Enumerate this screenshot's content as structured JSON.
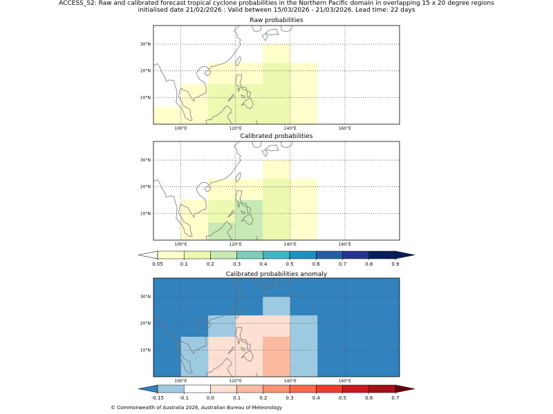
{
  "figure": {
    "title_line1": "ACCESS_S2: Raw and calibrated forecast tropical cyclone probabilities in the Northern Pacific domain in overlapping 15 x 20 degree regions",
    "title_line2": "initialised date 21/02/2026 :  Valid between 15/03/2026 - 21/03/2026. Lead time: 22 days",
    "credit": "© Commonwealth of Australia 2026, Australian Bureau of Meteorology"
  },
  "chart_data": [
    {
      "type": "heatmap",
      "title": "Raw probabilities",
      "lon_range": [
        90,
        180
      ],
      "lat_range": [
        0,
        37
      ],
      "lon_ticks": [
        100,
        120,
        140,
        160
      ],
      "lat_ticks": [
        10,
        20,
        30
      ],
      "lon_tick_labels": [
        "100°E",
        "120°E",
        "140°E",
        "160°E"
      ],
      "lat_tick_labels": [
        "10°N",
        "20°N",
        "30°N"
      ],
      "cells": [
        {
          "lon": [
            90,
            110
          ],
          "lat": [
            0,
            6.5
          ],
          "value": 0.07
        },
        {
          "lon": [
            100,
            120
          ],
          "lat": [
            6.5,
            15
          ],
          "value": 0.07
        },
        {
          "lon": [
            110,
            130
          ],
          "lat": [
            15,
            23
          ],
          "value": 0.07
        },
        {
          "lon": [
            110,
            120
          ],
          "lat": [
            0,
            6.5
          ],
          "value": 0.15
        },
        {
          "lon": [
            110,
            120
          ],
          "lat": [
            6.5,
            15
          ],
          "value": 0.15
        },
        {
          "lon": [
            120,
            130
          ],
          "lat": [
            0,
            15
          ],
          "value": 0.15
        },
        {
          "lon": [
            130,
            140
          ],
          "lat": [
            0,
            23
          ],
          "value": 0.15
        },
        {
          "lon": [
            140,
            150
          ],
          "lat": [
            0,
            23
          ],
          "value": 0.07
        },
        {
          "lon": [
            130,
            140
          ],
          "lat": [
            23,
            30
          ],
          "value": 0.07
        }
      ]
    },
    {
      "type": "heatmap",
      "title": "Calibrated probabilities",
      "lon_range": [
        90,
        180
      ],
      "lat_range": [
        0,
        37
      ],
      "lon_ticks": [
        100,
        120,
        140,
        160
      ],
      "lat_ticks": [
        10,
        20,
        30
      ],
      "lon_tick_labels": [
        "100°E",
        "120°E",
        "140°E",
        "160°E"
      ],
      "lat_tick_labels": [
        "10°N",
        "20°N",
        "30°N"
      ],
      "cells": [
        {
          "lon": [
            100,
            110
          ],
          "lat": [
            0,
            15
          ],
          "value": 0.07
        },
        {
          "lon": [
            110,
            130
          ],
          "lat": [
            15,
            23
          ],
          "value": 0.07
        },
        {
          "lon": [
            110,
            120
          ],
          "lat": [
            0,
            6.5
          ],
          "value": 0.25
        },
        {
          "lon": [
            110,
            120
          ],
          "lat": [
            6.5,
            15
          ],
          "value": 0.15
        },
        {
          "lon": [
            120,
            130
          ],
          "lat": [
            0,
            15
          ],
          "value": 0.25
        },
        {
          "lon": [
            130,
            140
          ],
          "lat": [
            0,
            23
          ],
          "value": 0.15
        },
        {
          "lon": [
            140,
            150
          ],
          "lat": [
            0,
            23
          ],
          "value": 0.07
        },
        {
          "lon": [
            130,
            140
          ],
          "lat": [
            23,
            30
          ],
          "value": 0.07
        }
      ]
    },
    {
      "type": "heatmap",
      "title": "Calibrated probabilities anomaly",
      "lon_range": [
        90,
        180
      ],
      "lat_range": [
        0,
        37
      ],
      "background_value": -0.2,
      "lon_ticks": [
        100,
        120,
        140,
        160
      ],
      "lat_ticks": [
        10,
        20,
        30
      ],
      "lon_tick_labels": [
        "100°E",
        "120°E",
        "140°E",
        "160°E"
      ],
      "lat_tick_labels": [
        "10°N",
        "20°N",
        "30°N"
      ],
      "cells": [
        {
          "lon": [
            130,
            140
          ],
          "lat": [
            23,
            30
          ],
          "value": -0.12
        },
        {
          "lon": [
            110,
            120
          ],
          "lat": [
            15,
            23
          ],
          "value": -0.12
        },
        {
          "lon": [
            120,
            140
          ],
          "lat": [
            15,
            23
          ],
          "value": 0.0
        },
        {
          "lon": [
            140,
            150
          ],
          "lat": [
            0,
            23
          ],
          "value": -0.12
        },
        {
          "lon": [
            100,
            110
          ],
          "lat": [
            0,
            15
          ],
          "value": -0.12
        },
        {
          "lon": [
            110,
            120
          ],
          "lat": [
            6.5,
            15
          ],
          "value": 0.0
        },
        {
          "lon": [
            110,
            120
          ],
          "lat": [
            0,
            6.5
          ],
          "value": 0.05
        },
        {
          "lon": [
            120,
            130
          ],
          "lat": [
            0,
            15
          ],
          "value": 0.0
        },
        {
          "lon": [
            130,
            140
          ],
          "lat": [
            0,
            15
          ],
          "value": 0.0
        },
        {
          "lon": [
            130,
            140
          ],
          "lat": [
            0,
            15
          ],
          "value": 0.15
        }
      ]
    }
  ],
  "colorbars": [
    {
      "name": "probability",
      "tick_labels": [
        "0.05",
        "0.1",
        "0.2",
        "0.3",
        "0.4",
        "0.5",
        "0.6",
        "0.7",
        "0.8",
        "0.9"
      ],
      "colors": [
        "#ffffcc",
        "#edf8b1",
        "#c7e9b4",
        "#7fcdbb",
        "#41b6c4",
        "#1d91c0",
        "#225ea8",
        "#253494",
        "#081d58"
      ],
      "under_color": "#ffffff",
      "over_color": "#081d58"
    },
    {
      "name": "anomaly",
      "tick_labels": [
        "-0.15",
        "-0.1",
        "0.0",
        "0.1",
        "0.2",
        "0.3",
        "0.4",
        "0.5",
        "0.6",
        "0.7"
      ],
      "colors": [
        "#9ecae1",
        "#ffffff",
        "#fee0d2",
        "#fcbba1",
        "#fc9272",
        "#fb6a4a",
        "#ef3b2c",
        "#cb181d",
        "#a50f15"
      ],
      "under_color": "#3182bd",
      "over_color": "#67000d"
    }
  ]
}
